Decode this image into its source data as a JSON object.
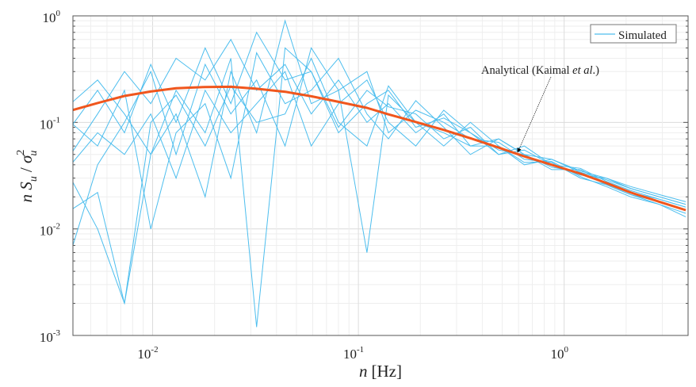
{
  "chart_data": {
    "type": "line",
    "xscale": "log",
    "yscale": "log",
    "xlim": [
      0.0041,
      4.0
    ],
    "ylim": [
      0.001,
      1
    ],
    "grid": true,
    "xlabel": {
      "var": "n",
      "unit": "[Hz]"
    },
    "ylabel": {
      "num": "n S",
      "num_sub": "u",
      "den": "σ",
      "den_sup": "2",
      "den_sub": "u"
    },
    "x_ticks": [
      {
        "base": "10",
        "exp": "-2",
        "value": 0.01
      },
      {
        "base": "10",
        "exp": "-1",
        "value": 0.1
      },
      {
        "base": "10",
        "exp": "0",
        "value": 1
      }
    ],
    "y_ticks": [
      {
        "base": "10",
        "exp": "0",
        "value": 1
      },
      {
        "base": "10",
        "exp": "-1",
        "value": 0.1
      },
      {
        "base": "10",
        "exp": "-2",
        "value": 0.01
      },
      {
        "base": "10",
        "exp": "-3",
        "value": 0.001
      }
    ],
    "legend": {
      "position": "top-right",
      "entries": [
        "Simulated"
      ]
    },
    "annotation": {
      "text": "Analytical (Kaimal ",
      "italic": "et  al",
      "tail": ".)",
      "points_to": {
        "x": 0.6,
        "y": 0.052
      }
    },
    "colors": {
      "simulated": "#4DBEEE",
      "analytical": "#F0561D"
    },
    "x": [
      0.004,
      0.0054,
      0.0073,
      0.0098,
      0.013,
      0.018,
      0.024,
      0.032,
      0.044,
      0.059,
      0.08,
      0.11,
      0.14,
      0.19,
      0.26,
      0.35,
      0.48,
      0.64,
      0.87,
      1.2,
      1.6,
      2.1,
      2.9,
      3.9
    ],
    "analytical": {
      "name": "Analytical (Kaimal et al.)",
      "values": [
        0.129,
        0.152,
        0.177,
        0.195,
        0.209,
        0.215,
        0.216,
        0.207,
        0.194,
        0.176,
        0.156,
        0.137,
        0.119,
        0.101,
        0.085,
        0.071,
        0.058,
        0.048,
        0.04,
        0.033,
        0.027,
        0.022,
        0.018,
        0.015
      ]
    },
    "simulated": {
      "name": "Simulated",
      "series": [
        [
          0.05,
          0.12,
          0.3,
          0.15,
          0.4,
          0.25,
          0.6,
          0.2,
          0.35,
          0.12,
          0.25,
          0.1,
          0.15,
          0.08,
          0.12,
          0.06,
          0.07,
          0.05,
          0.045,
          0.035,
          0.03,
          0.024,
          0.02,
          0.017
        ],
        [
          0.09,
          0.2,
          0.08,
          0.35,
          0.1,
          0.5,
          0.15,
          0.7,
          0.25,
          0.3,
          0.09,
          0.2,
          0.14,
          0.12,
          0.07,
          0.09,
          0.05,
          0.06,
          0.04,
          0.037,
          0.028,
          0.023,
          0.019,
          0.016
        ],
        [
          0.03,
          0.01,
          0.002,
          0.05,
          0.12,
          0.02,
          0.3,
          0.08,
          0.9,
          0.15,
          0.2,
          0.3,
          0.08,
          0.13,
          0.1,
          0.07,
          0.065,
          0.045,
          0.042,
          0.03,
          0.026,
          0.021,
          0.018,
          0.015
        ],
        [
          0.15,
          0.25,
          0.12,
          0.05,
          0.2,
          0.08,
          0.4,
          0.0012,
          0.5,
          0.3,
          0.08,
          0.15,
          0.2,
          0.09,
          0.11,
          0.08,
          0.055,
          0.05,
          0.038,
          0.034,
          0.029,
          0.024,
          0.02,
          0.017
        ],
        [
          0.006,
          0.04,
          0.1,
          0.3,
          0.05,
          0.35,
          0.12,
          0.25,
          0.06,
          0.5,
          0.2,
          0.006,
          0.18,
          0.1,
          0.06,
          0.1,
          0.06,
          0.042,
          0.043,
          0.031,
          0.025,
          0.02,
          0.017,
          0.014
        ],
        [
          0.1,
          0.06,
          0.2,
          0.01,
          0.08,
          0.15,
          0.03,
          0.45,
          0.15,
          0.2,
          0.4,
          0.12,
          0.07,
          0.16,
          0.09,
          0.05,
          0.07,
          0.05,
          0.036,
          0.036,
          0.027,
          0.022,
          0.019,
          0.016
        ],
        [
          0.04,
          0.08,
          0.05,
          0.12,
          0.03,
          0.2,
          0.08,
          0.15,
          0.3,
          0.06,
          0.15,
          0.25,
          0.1,
          0.06,
          0.13,
          0.08,
          0.05,
          0.055,
          0.04,
          0.032,
          0.03,
          0.025,
          0.021,
          0.018
        ],
        [
          0.015,
          0.022,
          0.002,
          0.1,
          0.18,
          0.06,
          0.22,
          0.1,
          0.12,
          0.4,
          0.1,
          0.06,
          0.22,
          0.1,
          0.08,
          0.06,
          0.06,
          0.04,
          0.045,
          0.034,
          0.026,
          0.021,
          0.017,
          0.013
        ]
      ]
    }
  }
}
